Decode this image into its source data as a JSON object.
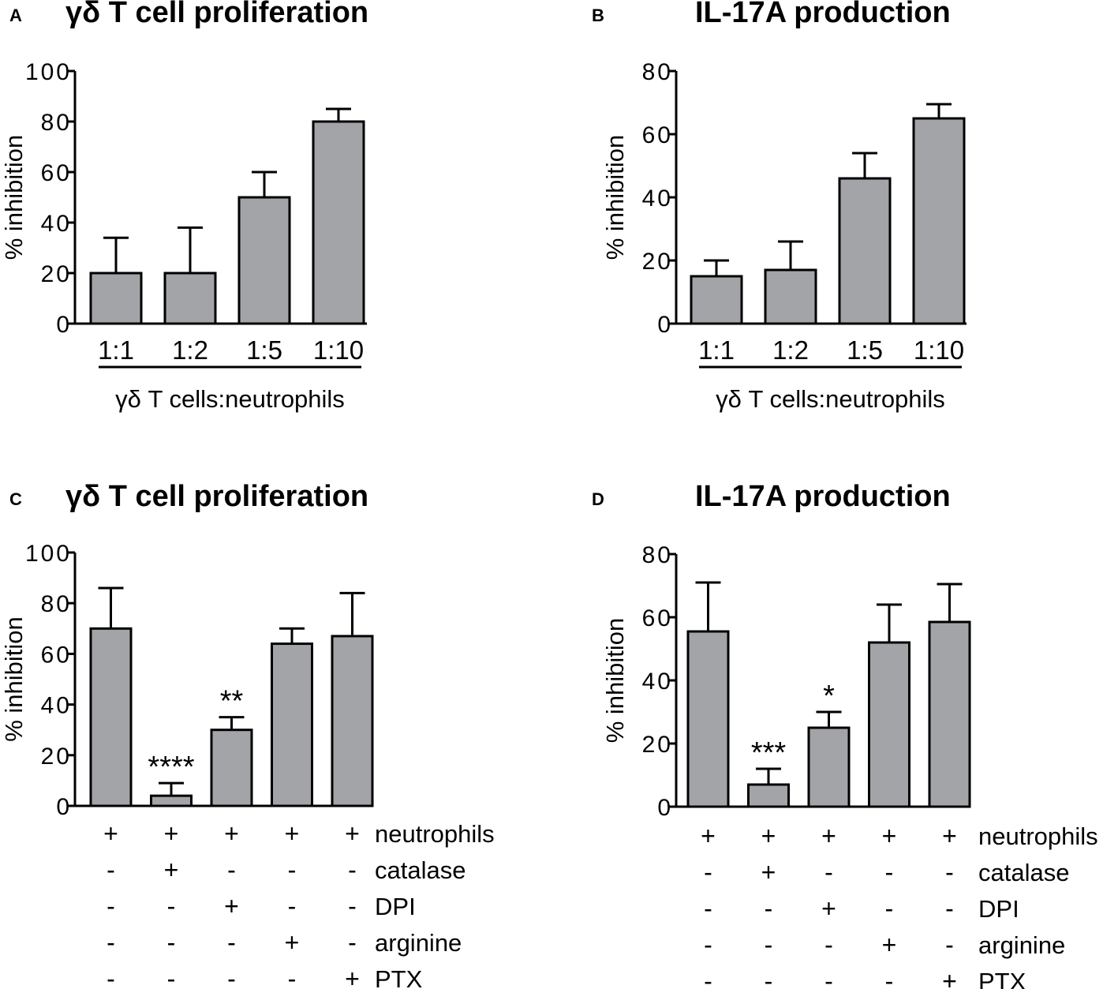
{
  "chart_data": [
    {
      "panel": "A",
      "type": "bar",
      "title": "γδ T cell proliferation",
      "ylabel": "% inhibition",
      "xlabel": "γδ T cells:neutrophils",
      "ylim": [
        0,
        100
      ],
      "yticks": [
        "0",
        "20",
        "40",
        "60",
        "80",
        "100"
      ],
      "categories": [
        "1:1",
        "1:2",
        "1:5",
        "1:10"
      ],
      "values": [
        20,
        20,
        50,
        80
      ],
      "errors": [
        14,
        18,
        10,
        5
      ],
      "bar_color": "#a2a4a8"
    },
    {
      "panel": "B",
      "type": "bar",
      "title": "IL-17A production",
      "ylabel": "% inhibition",
      "xlabel": "γδ T cells:neutrophils",
      "ylim": [
        0,
        80
      ],
      "yticks": [
        "0",
        "20",
        "40",
        "60",
        "80"
      ],
      "categories": [
        "1:1",
        "1:2",
        "1:5",
        "1:10"
      ],
      "values": [
        15,
        17,
        46,
        65
      ],
      "errors": [
        5,
        9,
        8,
        4.5
      ],
      "bar_color": "#a2a4a8"
    },
    {
      "panel": "C",
      "type": "bar",
      "title": "γδ T cell proliferation",
      "ylabel": "% inhibition",
      "ylim": [
        0,
        100
      ],
      "yticks": [
        "0",
        "20",
        "40",
        "60",
        "80",
        "100"
      ],
      "values": [
        70,
        4,
        30,
        64,
        67
      ],
      "errors": [
        16,
        5,
        5,
        6,
        17
      ],
      "significance": [
        "",
        "****",
        "**",
        "",
        ""
      ],
      "conditions": [
        {
          "name": "neutrophils",
          "marks": [
            "+",
            "+",
            "+",
            "+",
            "+"
          ]
        },
        {
          "name": "catalase",
          "marks": [
            "-",
            "+",
            "-",
            "-",
            "-"
          ]
        },
        {
          "name": "DPI",
          "marks": [
            "-",
            "-",
            "+",
            "-",
            "-"
          ]
        },
        {
          "name": "arginine",
          "marks": [
            "-",
            "-",
            "-",
            "+",
            "-"
          ]
        },
        {
          "name": "PTX",
          "marks": [
            "-",
            "-",
            "-",
            "-",
            "+"
          ]
        }
      ],
      "bar_color": "#a2a4a8"
    },
    {
      "panel": "D",
      "type": "bar",
      "title": "IL-17A production",
      "ylabel": "% inhibition",
      "ylim": [
        0,
        80
      ],
      "yticks": [
        "0",
        "20",
        "40",
        "60",
        "80"
      ],
      "values": [
        55.5,
        7,
        25,
        52,
        58.5
      ],
      "errors": [
        15.5,
        5,
        5,
        12,
        12
      ],
      "significance": [
        "",
        "***",
        "*",
        "",
        ""
      ],
      "conditions": [
        {
          "name": "neutrophils",
          "marks": [
            "+",
            "+",
            "+",
            "+",
            "+"
          ]
        },
        {
          "name": "catalase",
          "marks": [
            "-",
            "+",
            "-",
            "-",
            "-"
          ]
        },
        {
          "name": "DPI",
          "marks": [
            "-",
            "-",
            "+",
            "-",
            "-"
          ]
        },
        {
          "name": "arginine",
          "marks": [
            "-",
            "-",
            "-",
            "+",
            "-"
          ]
        },
        {
          "name": "PTX",
          "marks": [
            "-",
            "-",
            "-",
            "-",
            "+"
          ]
        }
      ],
      "bar_color": "#a2a4a8"
    }
  ]
}
